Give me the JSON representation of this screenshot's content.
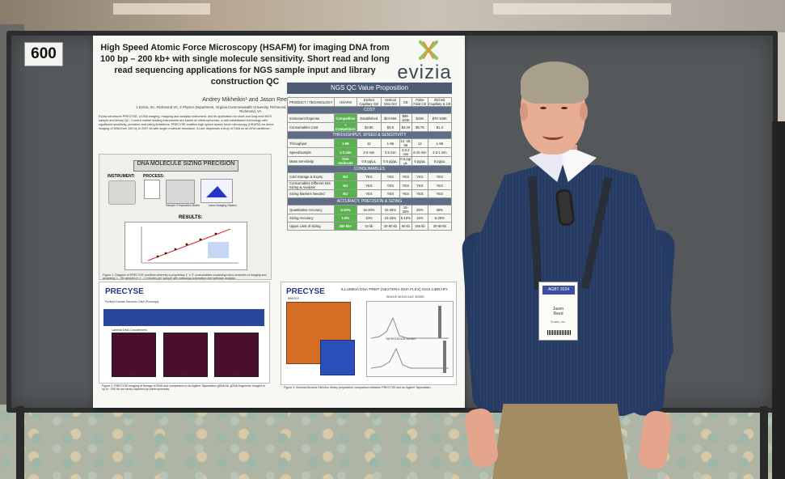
{
  "photo": {
    "board_number": "600"
  },
  "poster": {
    "title": "High Speed Atomic Force Microscopy (HSAFM) for imaging DNA from 100 bp – 200 kb+ with single molecule sensitivity. Short read and long read sequencing applications for NGS sample input and library construction QC",
    "authors": "Andrey Mikheikin¹ and Jason Reed¹,²,³",
    "affiliation": "1 Evizia, Inc. Richmond VA, 2 Physics Department, Virginia Commonwealth University, Richmond, VA, and 3 Massey Comprehensive Cancer Center, Richmond, VA",
    "logo_text": "evizia",
    "abstract": "Evizia introduces PRECYSE, a DNA imaging, mapping and analysis instrument, and its application for short and long read NGS sample and library QC. Current market leading instruments are based on electrophoresis, a well-established technology with significant sensitivity, precision and sizing limitations. PRECYSE enables high speed atomic force microscopy (HSAFM) for direct imaging of DNA from 100 bp to 200+ kb with single molecule resolution. A user dispenses a drop of DNA on an AFM cantilever...",
    "left_block": {
      "title": "DNA MOLECULE SIZING PRECISION",
      "instrument_label": "INSTRUMENT:",
      "process_label": "PROCESS:",
      "results_label": "RESULTS:",
      "instrument_caption": "Sample Preparation Buffer",
      "imaging_caption": "Nano Imaging Station",
      "figure_caption": "Figure 1: Diagram of PRECYSE workflow whereby a proprietary 1\" x 3\" consumables containing micro-channels of imaging and analyzing 1 – 96 samples in 1 – 2 minutes per sample with walkaway automation and software analysis."
    },
    "bottom_left": {
      "logo": "PRECYSE",
      "subtitle": "Purified Human Genomic DNA (Promega)",
      "label": "Lambda DNA Concatemers",
      "panel_labels": [
        "48 kb",
        "96 kb",
        "193 kb"
      ],
      "caption": "Figure 2: PRECYSE imaging of lineage of DNA and comparison to an Agilent Tapestation gDNA kit. gDNA fragments imaged to up to ~200 kb are rarely captured by electrophoresis."
    },
    "qc_table": {
      "title": "NGS QC Value Proposition",
      "headers": [
        "PRODUCT / TECHNOLOGY",
        "HSAFM",
        "Etched Capillary Gel",
        "Vertical Mini Gel",
        "CE",
        "Pulse Field CE",
        "Etched Capillary & CE"
      ],
      "sections": [
        {
          "title": "COST",
          "rows": [
            [
              "Instrument Expense",
              "Competitive",
              "Established",
              "$44-65K",
              "$65-100K",
              "$43K",
              "$70-100K"
            ],
            [
              "Consumables Cost",
              "< Competitors",
              "$3.86",
              "$3.8",
              "$3.40",
              "$6.75",
              "$1.3"
            ]
          ]
        },
        {
          "title": "THROUGHPUT, SPEED & SENSITIVITY",
          "rows": [
            [
              "Throughput",
              "1-96",
              "12",
              "1-96",
              "12, 48, 96",
              "12",
              "1-96"
            ],
            [
              "Speed/sample",
              "1-2 min",
              "2-4 min",
              "3.5 min",
              "3.3-2 min",
              "6-15 min",
              "3.3-1 min"
            ],
            [
              "Mass Sensitivity",
              "One molecule",
              "0.5 pg/µL",
              "0.5 pg/µL",
              "0.5 pg/µL",
              "5 pg/µL",
              "5 pg/µL"
            ]
          ]
        },
        {
          "title": "CONSUMABLES",
          "rows": [
            [
              "Cold Storage & Expiry",
              "NO",
              "YES",
              "YES",
              "YES",
              "YES",
              "YES"
            ],
            [
              "Consumables Different Kits Sizing & Analysis",
              "NO",
              "YES",
              "YES",
              "YES",
              "YES",
              "YES"
            ],
            [
              "Sizing Markers Needed",
              "NO",
              "YES",
              "YES",
              "YES",
              "YES",
              "YES"
            ]
          ]
        },
        {
          "title": "ACCURACY, PRECISION & SIZING",
          "rows": [
            [
              "Quantitative Accuracy",
              "5-10%",
              "15-20%",
              "20-25%",
              "15-30%",
              "25%",
              "30%"
            ],
            [
              "Sizing Accuracy",
              "1-5%",
              "10%",
              "10-15%",
              "5-10%",
              "15%",
              "5-20%"
            ],
            [
              "Upper Limit of Sizing",
              "200 kb+",
              "10 kb",
              "20-60 kb",
              "60 kb",
              "165 kb",
              "20-60 kb"
            ]
          ]
        }
      ],
      "notes": "Table: * Technical information sourced from vendor materials available through public sources. * US list price. * Per sample with max throughput. US list price."
    },
    "right_block": {
      "logo": "PRECYSE",
      "illumina_title": "ILLUMINA DNA PREP (NEXTERA DNA FLEX) NGS LIBRARY",
      "subtitle": "SINGLE MOLECULE SIZING",
      "images_label": "IMAGES",
      "tapestation_label": "TAPESTATION SIZING",
      "caption": "Figure 3: Illumina Nextera DNA flex library preparation comparison between PRECYSE and an Agilent Tapestation."
    }
  },
  "person": {
    "badge_logo": "AGBT 2024",
    "badge_name": "Jason\nReed",
    "badge_org": "Evizia, Inc."
  },
  "colors": {
    "board": "#55585a",
    "poster": "#f7f7f4",
    "sweater": "#263b63",
    "accent_green": "#58b24d",
    "accent_blue": "#29489c"
  }
}
